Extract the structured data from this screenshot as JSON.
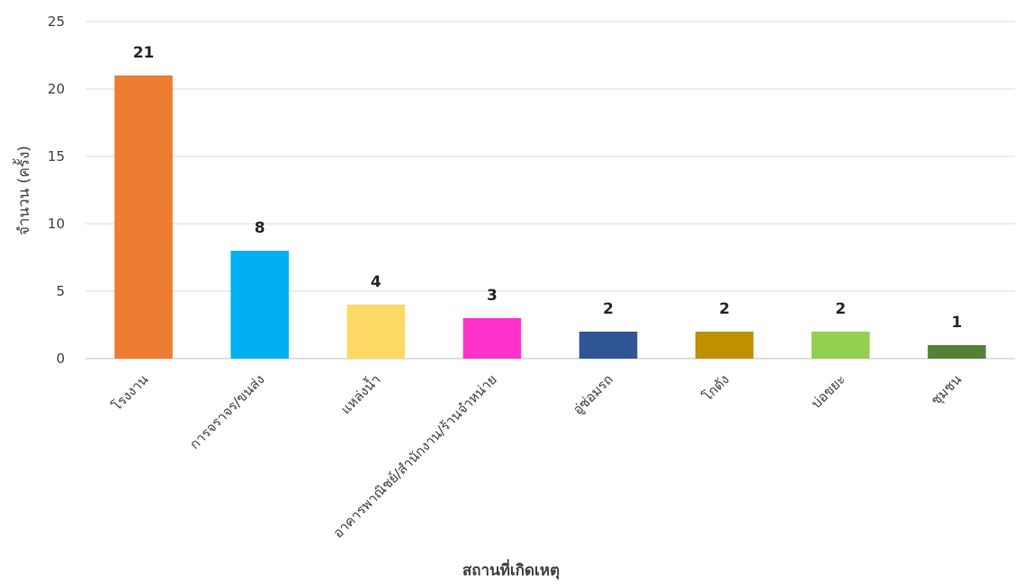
{
  "chart_data": {
    "type": "bar",
    "categories": [
      "โรงงาน",
      "การจราจร/ขนส่ง",
      "แหล่งน้ำ",
      "อาคารพาณิชย์/สำนักงาน/ร้านจำหน่าย",
      "อู่ซ่อมรถ",
      "โกดัง",
      "บ่อขยะ",
      "ชุมชน"
    ],
    "values": [
      21,
      8,
      4,
      3,
      2,
      2,
      2,
      1
    ],
    "colors": [
      "#ED7D31",
      "#00B0F0",
      "#FFD966",
      "#FF33CC",
      "#2F5597",
      "#BF9000",
      "#92D050",
      "#548235"
    ],
    "xlabel": "สถานที่เกิดเหตุ",
    "ylabel": "จำนวน (ครั้ง)",
    "ylim": [
      0,
      25
    ],
    "yticks": [
      0,
      5,
      10,
      15,
      20,
      25
    ],
    "grid": true,
    "data_labels": true
  }
}
